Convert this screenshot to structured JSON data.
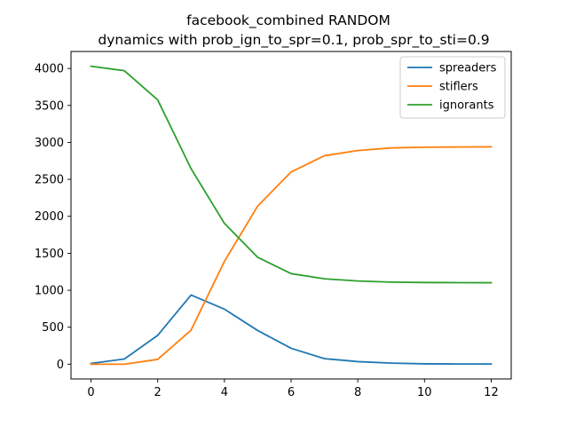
{
  "chart_data": {
    "type": "line",
    "title": "facebook_combined RANDOM",
    "subtitle": "dynamics with prob_ign_to_spr=0.1, prob_spr_to_sti=0.9",
    "xlabel": "",
    "ylabel": "",
    "x": [
      0,
      1,
      2,
      3,
      4,
      5,
      6,
      7,
      8,
      9,
      10,
      11,
      12
    ],
    "xlim": [
      -0.6,
      12.6
    ],
    "ylim": [
      -200,
      4230
    ],
    "xticks": [
      0,
      2,
      4,
      6,
      8,
      10,
      12
    ],
    "yticks": [
      0,
      500,
      1000,
      1500,
      2000,
      2500,
      3000,
      3500,
      4000
    ],
    "grid": false,
    "legend": "top-right",
    "series": [
      {
        "name": "spreaders",
        "color": "#1f77b4",
        "values": [
          10,
          70,
          390,
          935,
          745,
          455,
          215,
          75,
          35,
          15,
          5,
          3,
          2
        ]
      },
      {
        "name": "stiflers",
        "color": "#ff7f0e",
        "values": [
          0,
          0,
          65,
          460,
          1390,
          2140,
          2600,
          2820,
          2890,
          2925,
          2935,
          2938,
          2940
        ]
      },
      {
        "name": "ignorants",
        "color": "#2ca02c",
        "values": [
          4030,
          3970,
          3575,
          2645,
          1905,
          1445,
          1225,
          1155,
          1125,
          1110,
          1105,
          1103,
          1102
        ]
      }
    ]
  }
}
